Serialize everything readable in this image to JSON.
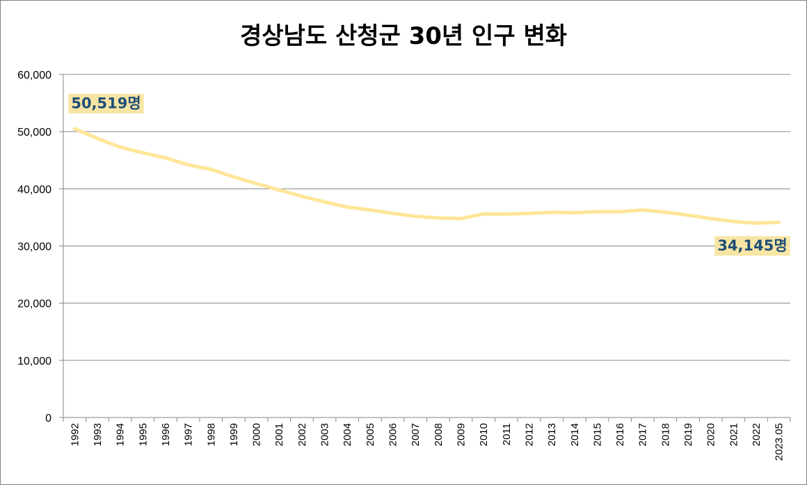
{
  "chart_data": {
    "type": "line",
    "title": "경상남도 산청군 30년 인구 변화",
    "xlabel": "",
    "ylabel": "",
    "ylim": [
      0,
      60000
    ],
    "yticks": [
      "0",
      "10,000",
      "20,000",
      "30,000",
      "40,000",
      "50,000",
      "60,000"
    ],
    "ytick_values": [
      0,
      10000,
      20000,
      30000,
      40000,
      50000,
      60000
    ],
    "grid": true,
    "legend": "none",
    "x": [
      "1992",
      "1993",
      "1994",
      "1995",
      "1996",
      "1997",
      "1998",
      "1999",
      "2000",
      "2001",
      "2002",
      "2003",
      "2004",
      "2005",
      "2006",
      "2007",
      "2008",
      "2009",
      "2010",
      "2011",
      "2012",
      "2013",
      "2014",
      "2015",
      "2016",
      "2017",
      "2018",
      "2019",
      "2020",
      "2021",
      "2022",
      "2023.05"
    ],
    "series": [
      {
        "color": "#ffe699",
        "values": [
          50519,
          48800,
          47300,
          46300,
          45400,
          44200,
          43400,
          42100,
          40900,
          39800,
          38700,
          37700,
          36800,
          36300,
          35700,
          35200,
          34900,
          34800,
          35600,
          35600,
          35700,
          35900,
          35800,
          36000,
          36000,
          36300,
          35900,
          35400,
          34800,
          34300,
          34000,
          34145
        ]
      }
    ],
    "annotations": [
      {
        "index": 0,
        "text": "50,519명"
      },
      {
        "index": 31,
        "text": "34,145명"
      }
    ],
    "colors": {
      "line": "#ffe699",
      "label_bg": "#f7e5a4",
      "label_text": "#1f4e79",
      "grid": "#868686"
    }
  }
}
